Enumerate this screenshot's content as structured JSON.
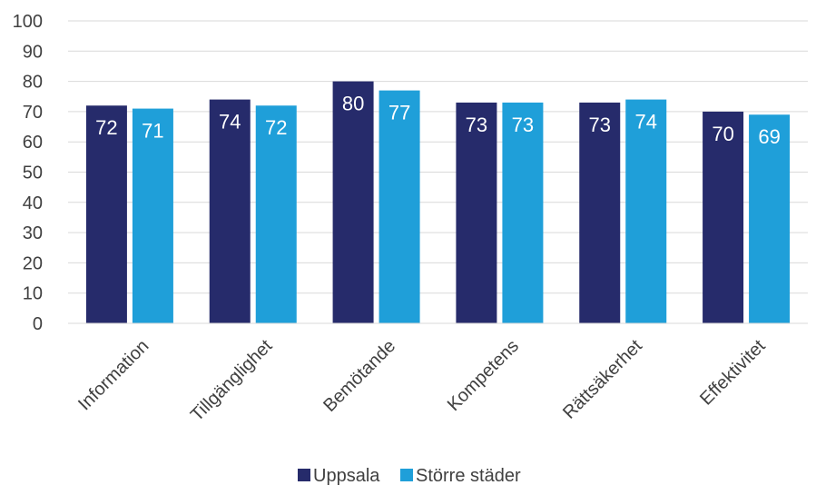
{
  "chart_data": {
    "type": "bar",
    "categories": [
      "Information",
      "Tillgänglighet",
      "Bemötande",
      "Kompetens",
      "Rättsäkerhet",
      "Effektivitet"
    ],
    "series": [
      {
        "name": "Uppsala",
        "values": [
          72,
          74,
          80,
          73,
          73,
          70
        ],
        "color": "#262b6b"
      },
      {
        "name": "Större städer",
        "values": [
          71,
          72,
          77,
          73,
          74,
          69
        ],
        "color": "#1f9fd9"
      }
    ],
    "ylim": [
      0,
      100
    ],
    "yticks": [
      "0",
      "10",
      "20",
      "30",
      "40",
      "50",
      "60",
      "70",
      "80",
      "90",
      "100"
    ],
    "grid": true,
    "legend": "bottom",
    "data_labels": true
  }
}
